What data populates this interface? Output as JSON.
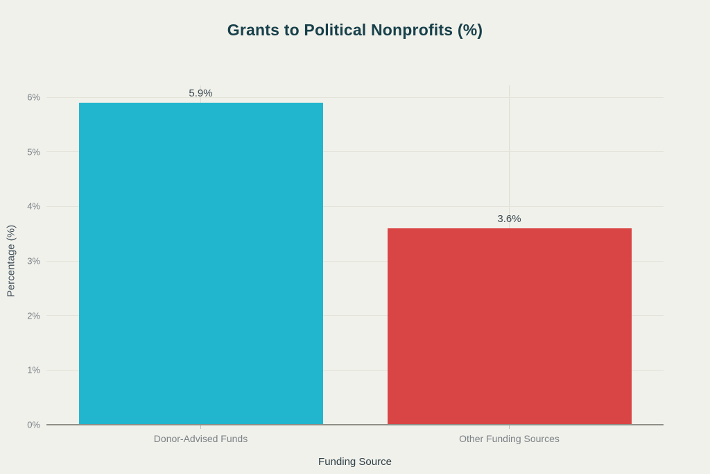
{
  "chart_data": {
    "type": "bar",
    "title": "Grants to Political Nonprofits (%)",
    "xlabel": "Funding Source",
    "ylabel": "Percentage (%)",
    "categories": [
      "Donor-Advised Funds",
      "Other Funding Sources"
    ],
    "values": [
      5.9,
      3.6
    ],
    "value_labels": [
      "5.9%",
      "3.6%"
    ],
    "bar_colors": [
      "#21B6CE",
      "#D94545"
    ],
    "ylim": [
      0,
      6
    ],
    "yticks": [
      0,
      1,
      2,
      3,
      4,
      5,
      6
    ],
    "ytick_labels": [
      "0%",
      "1%",
      "2%",
      "3%",
      "4%",
      "5%",
      "6%"
    ],
    "grid": "on",
    "legend": "none"
  },
  "colors": {
    "background": "#F1F1EB",
    "title_text": "#17404A",
    "tick_text": "#7A8187",
    "axis_label_text": "#41505A",
    "data_label_text": "#3C4A52",
    "hgrid": "#E3E3DA",
    "vgrid": "#DDDDD3",
    "axis_line": "#8F8F88"
  }
}
